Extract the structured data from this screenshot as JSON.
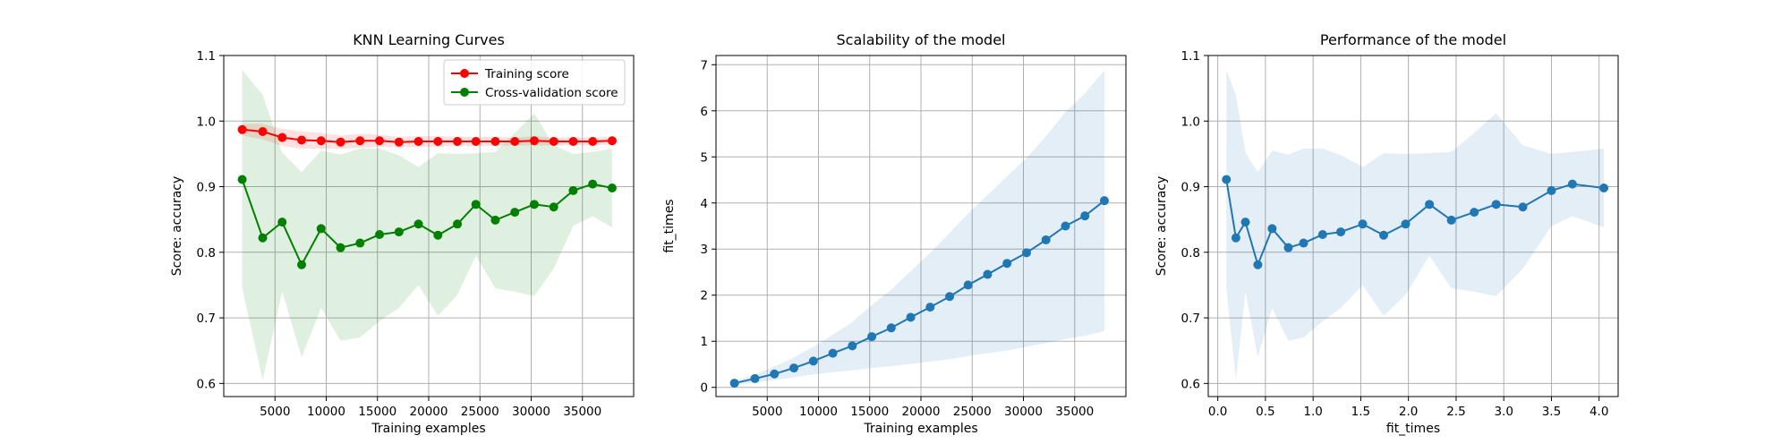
{
  "chart_data": [
    {
      "type": "line",
      "title": "KNN Learning Curves",
      "xlabel": "Training examples",
      "ylabel": "Score: accuracy",
      "xlim": [
        0,
        40000
      ],
      "ylim": [
        0.58,
        1.1
      ],
      "xticks": [
        5000,
        10000,
        15000,
        20000,
        25000,
        30000,
        35000
      ],
      "yticks": [
        0.6,
        0.7,
        0.8,
        0.9,
        1.0,
        1.1
      ],
      "grid": true,
      "legend_position": "top-right",
      "x": [
        1800,
        3800,
        5700,
        7600,
        9500,
        11400,
        13300,
        15200,
        17100,
        19000,
        20900,
        22800,
        24600,
        26500,
        28400,
        30300,
        32200,
        34100,
        36000,
        37900
      ],
      "series": [
        {
          "name": "Training score",
          "color": "#ff0000",
          "values": [
            0.987,
            0.984,
            0.975,
            0.971,
            0.97,
            0.968,
            0.97,
            0.97,
            0.968,
            0.969,
            0.969,
            0.969,
            0.969,
            0.969,
            0.969,
            0.97,
            0.969,
            0.969,
            0.969,
            0.97
          ],
          "band_low": [
            0.978,
            0.972,
            0.962,
            0.958,
            0.958,
            0.958,
            0.959,
            0.961,
            0.96,
            0.961,
            0.961,
            0.962,
            0.962,
            0.962,
            0.963,
            0.963,
            0.963,
            0.963,
            0.963,
            0.964
          ],
          "band_high": [
            0.996,
            0.996,
            0.988,
            0.984,
            0.982,
            0.978,
            0.981,
            0.979,
            0.976,
            0.977,
            0.977,
            0.976,
            0.976,
            0.976,
            0.975,
            0.977,
            0.975,
            0.975,
            0.975,
            0.976
          ]
        },
        {
          "name": "Cross-validation score",
          "color": "#008000",
          "values": [
            0.911,
            0.822,
            0.846,
            0.781,
            0.836,
            0.807,
            0.814,
            0.827,
            0.831,
            0.843,
            0.826,
            0.843,
            0.873,
            0.849,
            0.861,
            0.873,
            0.869,
            0.894,
            0.904,
            0.898
          ],
          "band_low": [
            0.745,
            0.605,
            0.74,
            0.64,
            0.715,
            0.665,
            0.67,
            0.695,
            0.715,
            0.75,
            0.703,
            0.735,
            0.795,
            0.745,
            0.74,
            0.733,
            0.775,
            0.84,
            0.855,
            0.838
          ],
          "band_high": [
            1.078,
            1.04,
            0.952,
            0.922,
            0.955,
            0.949,
            0.958,
            0.958,
            0.948,
            0.93,
            0.951,
            0.95,
            0.951,
            0.953,
            0.982,
            1.012,
            0.963,
            0.95,
            0.953,
            0.958
          ]
        }
      ]
    },
    {
      "type": "line",
      "title": "Scalability of the model",
      "xlabel": "Training examples",
      "ylabel": "fit_times",
      "xlim": [
        0,
        40000
      ],
      "ylim": [
        -0.2,
        7.2
      ],
      "xticks": [
        5000,
        10000,
        15000,
        20000,
        25000,
        30000,
        35000
      ],
      "yticks": [
        0,
        1,
        2,
        3,
        4,
        5,
        6,
        7
      ],
      "grid": true,
      "x": [
        1800,
        3800,
        5700,
        7600,
        9500,
        11400,
        13300,
        15200,
        17100,
        19000,
        20900,
        22800,
        24600,
        26500,
        28400,
        30300,
        32200,
        34100,
        36000,
        37900
      ],
      "series": [
        {
          "color": "#1f77b4",
          "values": [
            0.09,
            0.19,
            0.29,
            0.42,
            0.57,
            0.74,
            0.9,
            1.1,
            1.29,
            1.52,
            1.74,
            1.97,
            2.22,
            2.45,
            2.69,
            2.92,
            3.2,
            3.5,
            3.72,
            4.05
          ],
          "band_low": [
            0.05,
            0.1,
            0.16,
            0.22,
            0.28,
            0.33,
            0.37,
            0.42,
            0.46,
            0.51,
            0.56,
            0.61,
            0.68,
            0.74,
            0.8,
            0.88,
            0.96,
            1.05,
            1.12,
            1.22
          ],
          "band_high": [
            0.13,
            0.28,
            0.45,
            0.65,
            0.88,
            1.14,
            1.42,
            1.78,
            2.12,
            2.52,
            2.92,
            3.35,
            3.77,
            4.17,
            4.58,
            4.97,
            5.45,
            5.97,
            6.38,
            6.88
          ]
        }
      ]
    },
    {
      "type": "line",
      "title": "Performance of the model",
      "xlabel": "fit_times",
      "ylabel": "Score: accuracy",
      "xlim": [
        -0.1,
        4.2
      ],
      "ylim": [
        0.58,
        1.1
      ],
      "xticks": [
        0.0,
        0.5,
        1.0,
        1.5,
        2.0,
        2.5,
        3.0,
        3.5,
        4.0
      ],
      "yticks": [
        0.6,
        0.7,
        0.8,
        0.9,
        1.0,
        1.1
      ],
      "grid": true,
      "x": [
        0.09,
        0.19,
        0.29,
        0.42,
        0.57,
        0.74,
        0.9,
        1.1,
        1.29,
        1.52,
        1.74,
        1.97,
        2.22,
        2.45,
        2.69,
        2.92,
        3.2,
        3.5,
        3.72,
        4.05
      ],
      "series": [
        {
          "color": "#1f77b4",
          "values": [
            0.911,
            0.822,
            0.846,
            0.781,
            0.836,
            0.807,
            0.814,
            0.827,
            0.831,
            0.843,
            0.826,
            0.843,
            0.873,
            0.849,
            0.861,
            0.873,
            0.869,
            0.894,
            0.904,
            0.898
          ],
          "band_low": [
            0.745,
            0.605,
            0.74,
            0.64,
            0.715,
            0.665,
            0.67,
            0.695,
            0.715,
            0.75,
            0.703,
            0.735,
            0.795,
            0.745,
            0.74,
            0.733,
            0.775,
            0.84,
            0.855,
            0.838
          ],
          "band_high": [
            1.078,
            1.04,
            0.952,
            0.922,
            0.955,
            0.949,
            0.958,
            0.958,
            0.948,
            0.93,
            0.951,
            0.95,
            0.951,
            0.953,
            0.982,
            1.012,
            0.963,
            0.95,
            0.953,
            0.958
          ]
        }
      ]
    }
  ]
}
